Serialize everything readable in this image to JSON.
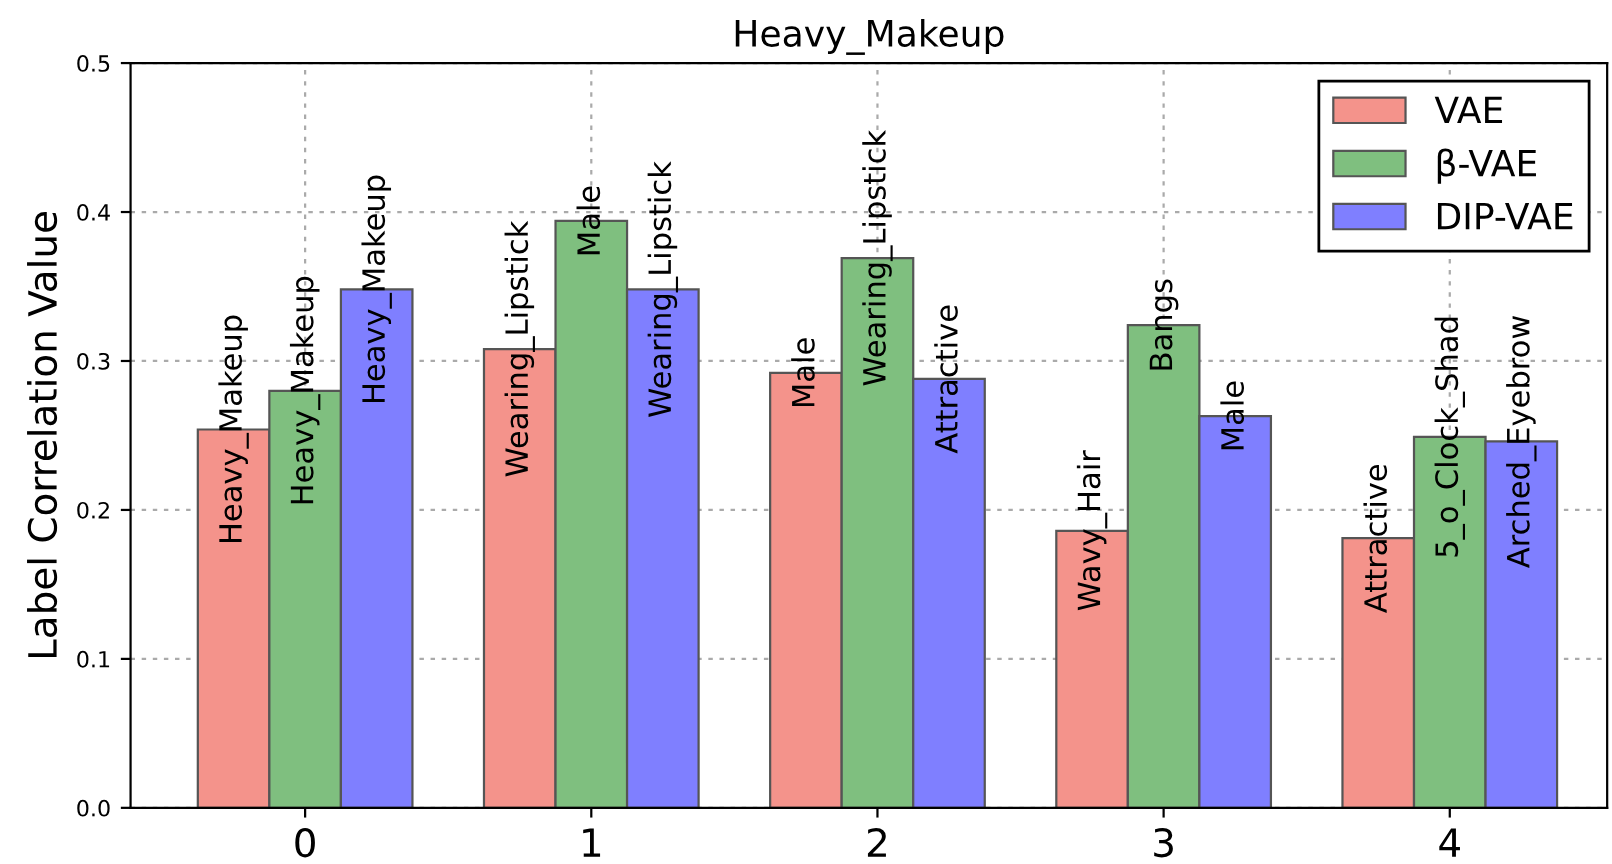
{
  "chart_data": {
    "type": "bar",
    "title": "Heavy_Makeup",
    "ylabel": "Label Correlation Value",
    "categories": [
      "0",
      "1",
      "2",
      "3",
      "4"
    ],
    "series": [
      {
        "name": "VAE",
        "color": "#f4938b",
        "values": [
          0.254,
          0.308,
          0.292,
          0.186,
          0.181
        ]
      },
      {
        "name": "β-VAE",
        "color": "#7fbf7f",
        "values": [
          0.28,
          0.394,
          0.369,
          0.324,
          0.249
        ]
      },
      {
        "name": "DIP-VAE",
        "color": "#7f7fff",
        "values": [
          0.348,
          0.348,
          0.288,
          0.263,
          0.246
        ]
      }
    ],
    "annotations": [
      "Heavy_Makeup",
      "Wearing_Lipstick",
      "Male",
      "Wavy_Hair",
      "Attractive",
      "Heavy_Makeup",
      "Male",
      "Wearing_Lipstick",
      "Bangs",
      "5_o_Clock_Shad",
      "Heavy_Makeup",
      "Wearing_Lipstick",
      "Attractive",
      "Male",
      "Arched_Eyebrow"
    ],
    "ylim": [
      0,
      0.5
    ],
    "yticks": [
      {
        "value": 0,
        "label": "0.0"
      },
      0.1,
      0.2,
      0.3,
      0.4,
      0.5
    ],
    "grid": true,
    "legend": "top right"
  }
}
